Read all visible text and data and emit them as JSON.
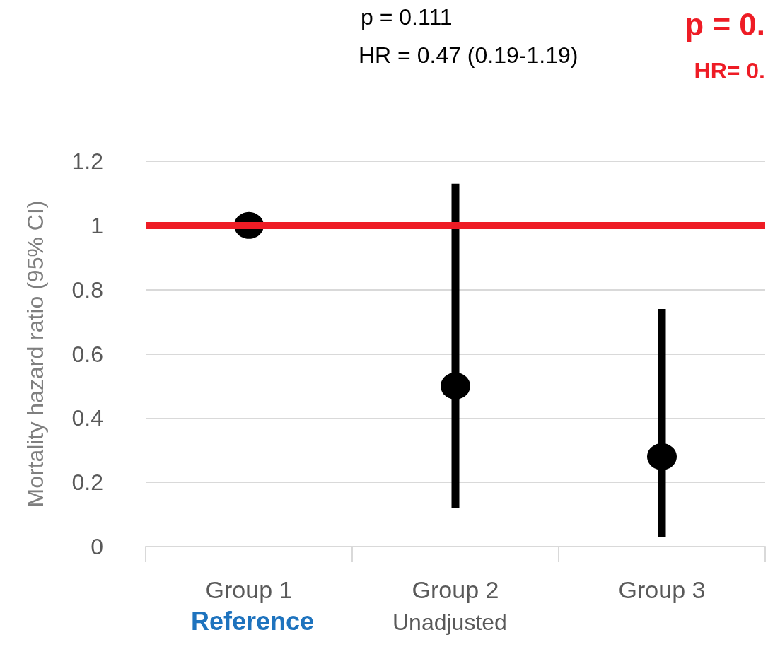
{
  "chart_data": {
    "type": "scatter",
    "ylabel": "Mortality hazard ratio (95% CI)",
    "categories": [
      "Group 1",
      "Group 2",
      "Group 3"
    ],
    "values": [
      1,
      0.5,
      0.28
    ],
    "errors": [
      null,
      [
        0.12,
        1.13
      ],
      [
        0.03,
        0.74
      ]
    ],
    "color": "#000000",
    "marker": "circle",
    "ylim": [
      0,
      1.2
    ],
    "yticks": [
      0,
      0.2,
      0.4,
      0.6,
      0.8,
      1,
      1.2
    ],
    "grid": "y",
    "ref_lines": [
      {
        "axis": "y",
        "value": 1,
        "color": "#ee1c25"
      }
    ],
    "annotations": [
      "p = 0.111",
      "HR = 0.47 (0.19-1.19)",
      "p = 0.",
      "HR= 0.",
      "Reference",
      "Unadjusted"
    ]
  }
}
